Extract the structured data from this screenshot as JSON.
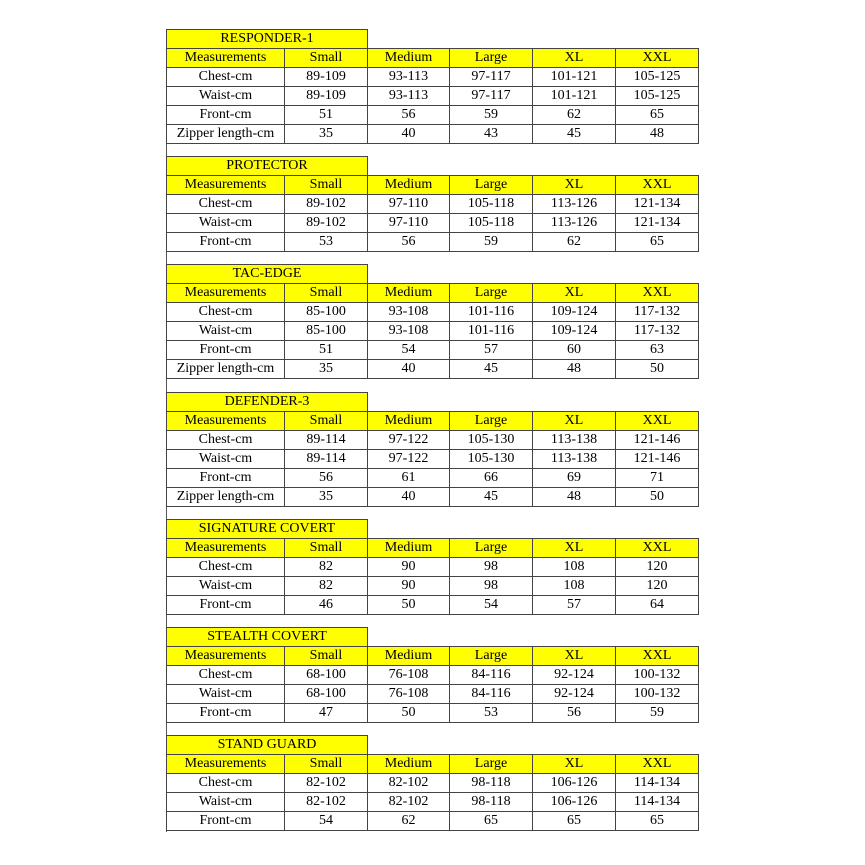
{
  "colors": {
    "header_bg": "#ffff00",
    "border": "#444444"
  },
  "header_labels": [
    "Measurements",
    "Small",
    "Medium",
    "Large",
    "XL",
    "XXL"
  ],
  "charts": [
    {
      "title": "RESPONDER-1",
      "rows": [
        [
          "Chest-cm",
          "89-109",
          "93-113",
          "97-117",
          "101-121",
          "105-125"
        ],
        [
          "Waist-cm",
          "89-109",
          "93-113",
          "97-117",
          "101-121",
          "105-125"
        ],
        [
          "Front-cm",
          "51",
          "56",
          "59",
          "62",
          "65"
        ],
        [
          "Zipper length-cm",
          "35",
          "40",
          "43",
          "45",
          "48"
        ]
      ]
    },
    {
      "title": "PROTECTOR",
      "rows": [
        [
          "Chest-cm",
          "89-102",
          "97-110",
          "105-118",
          "113-126",
          "121-134"
        ],
        [
          "Waist-cm",
          "89-102",
          "97-110",
          "105-118",
          "113-126",
          "121-134"
        ],
        [
          "Front-cm",
          "53",
          "56",
          "59",
          "62",
          "65"
        ]
      ]
    },
    {
      "title": "TAC-EDGE",
      "rows": [
        [
          "Chest-cm",
          "85-100",
          "93-108",
          "101-116",
          "109-124",
          "117-132"
        ],
        [
          "Waist-cm",
          "85-100",
          "93-108",
          "101-116",
          "109-124",
          "117-132"
        ],
        [
          "Front-cm",
          "51",
          "54",
          "57",
          "60",
          "63"
        ],
        [
          "Zipper length-cm",
          "35",
          "40",
          "45",
          "48",
          "50"
        ]
      ]
    },
    {
      "title": "DEFENDER-3",
      "rows": [
        [
          "Chest-cm",
          "89-114",
          "97-122",
          "105-130",
          "113-138",
          "121-146"
        ],
        [
          "Waist-cm",
          "89-114",
          "97-122",
          "105-130",
          "113-138",
          "121-146"
        ],
        [
          "Front-cm",
          "56",
          "61",
          "66",
          "69",
          "71"
        ],
        [
          "Zipper length-cm",
          "35",
          "40",
          "45",
          "48",
          "50"
        ]
      ]
    },
    {
      "title": "SIGNATURE COVERT",
      "rows": [
        [
          "Chest-cm",
          "82",
          "90",
          "98",
          "108",
          "120"
        ],
        [
          "Waist-cm",
          "82",
          "90",
          "98",
          "108",
          "120"
        ],
        [
          "Front-cm",
          "46",
          "50",
          "54",
          "57",
          "64"
        ]
      ]
    },
    {
      "title": "STEALTH COVERT",
      "rows": [
        [
          "Chest-cm",
          "68-100",
          "76-108",
          "84-116",
          "92-124",
          "100-132"
        ],
        [
          "Waist-cm",
          "68-100",
          "76-108",
          "84-116",
          "92-124",
          "100-132"
        ],
        [
          "Front-cm",
          "47",
          "50",
          "53",
          "56",
          "59"
        ]
      ]
    },
    {
      "title": "STAND GUARD",
      "rows": [
        [
          "Chest-cm",
          "82-102",
          "82-102",
          "98-118",
          "106-126",
          "114-134"
        ],
        [
          "Waist-cm",
          "82-102",
          "82-102",
          "98-118",
          "106-126",
          "114-134"
        ],
        [
          "Front-cm",
          "54",
          "62",
          "65",
          "65",
          "65"
        ]
      ]
    }
  ]
}
